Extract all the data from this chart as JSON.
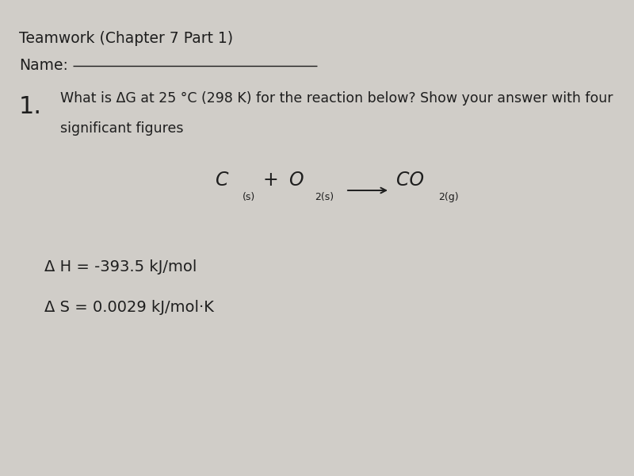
{
  "background_color": "#d0cdc8",
  "title_text": "Teamwork (Chapter 7 Part 1)",
  "name_label": "Name:",
  "question_number": "1.",
  "question_line1": "What is ΔG at 25 °C (298 K) for the reaction below? Show your answer with four",
  "question_line2": "significant figures",
  "dH_text": "Δ H = -393.5 kJ/mol",
  "dS_text": "Δ S = 0.0029 kJ/mol·K",
  "text_color": "#1e1e1e",
  "title_fontsize": 13.5,
  "body_fontsize": 12.5,
  "eq_main_fontsize": 17,
  "eq_sub_fontsize": 9,
  "number_fontsize": 22,
  "dHS_fontsize": 14
}
